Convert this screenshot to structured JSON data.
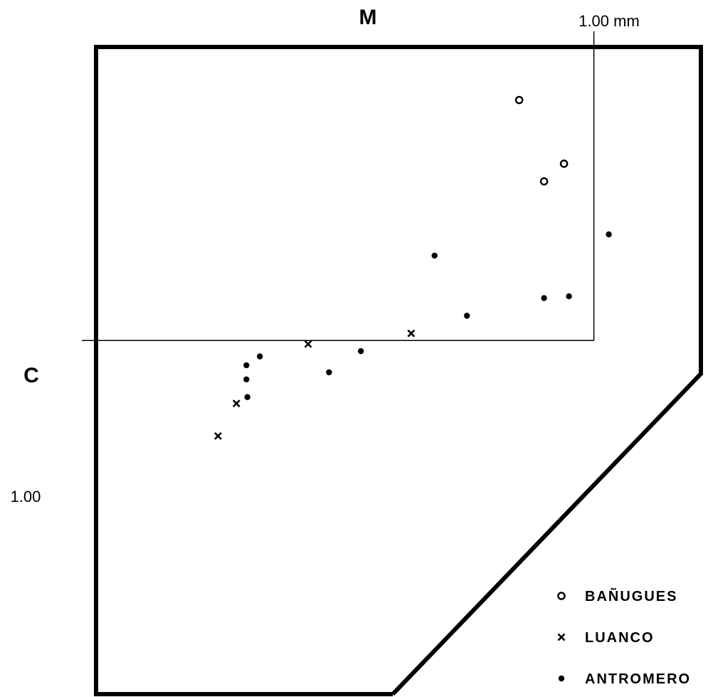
{
  "chart_data": {
    "type": "scatter",
    "title": "",
    "xlabel": "M",
    "ylabel": "C",
    "x_reference": {
      "value": 1.0,
      "label": "1.00 mm"
    },
    "y_reference": {
      "value": 1.0,
      "label": "1.00"
    },
    "xlim": [
      0.0,
      1.215
    ],
    "ylim": [
      0.0,
      1.83
    ],
    "legend_position": "bottom-right",
    "series": [
      {
        "name": "BAÑUGUES",
        "marker": "open-circle",
        "points": [
          {
            "x": 0.85,
            "y": 1.68
          },
          {
            "x": 0.94,
            "y": 1.5
          },
          {
            "x": 0.9,
            "y": 1.45
          }
        ]
      },
      {
        "name": "LUANCO",
        "marker": "x",
        "points": [
          {
            "x": 0.633,
            "y": 1.02
          },
          {
            "x": 0.426,
            "y": 0.99
          },
          {
            "x": 0.282,
            "y": 0.822
          },
          {
            "x": 0.245,
            "y": 0.73
          }
        ]
      },
      {
        "name": "ANTROMERO",
        "marker": "filled-dot",
        "points": [
          {
            "x": 1.03,
            "y": 1.3
          },
          {
            "x": 0.68,
            "y": 1.24
          },
          {
            "x": 0.95,
            "y": 1.125
          },
          {
            "x": 0.9,
            "y": 1.12
          },
          {
            "x": 0.745,
            "y": 1.07
          },
          {
            "x": 0.532,
            "y": 0.97
          },
          {
            "x": 0.329,
            "y": 0.955
          },
          {
            "x": 0.302,
            "y": 0.93
          },
          {
            "x": 0.468,
            "y": 0.91
          },
          {
            "x": 0.302,
            "y": 0.89
          },
          {
            "x": 0.304,
            "y": 0.84
          }
        ]
      }
    ]
  },
  "colors": {
    "ink": "#000000",
    "background": "#ffffff"
  }
}
